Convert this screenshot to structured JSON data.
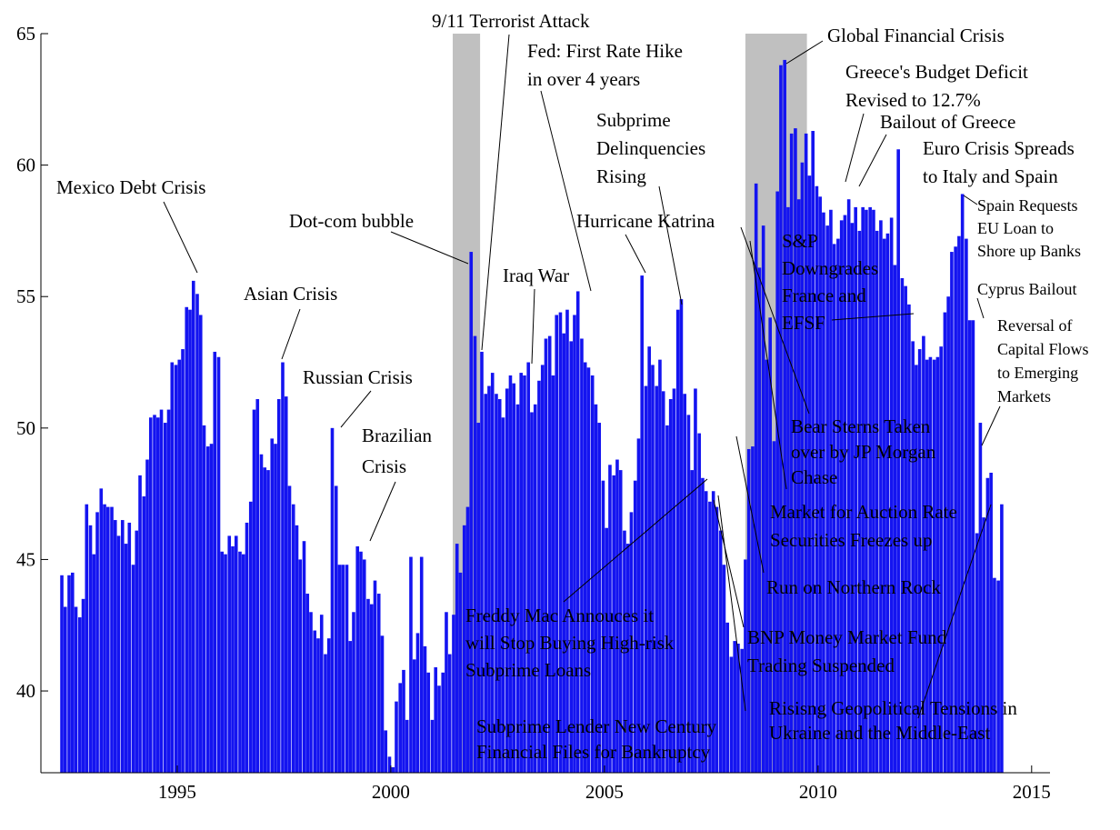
{
  "chart_data": {
    "type": "bar",
    "color": "#1414f0",
    "shade_color": "#c0c0c0",
    "xlim": [
      1991.81,
      2015.43
    ],
    "ylim": [
      36.89,
      65
    ],
    "xticks": [
      1995,
      2000,
      2005,
      2010,
      2015
    ],
    "yticks": [
      40,
      45,
      50,
      55,
      60,
      65
    ],
    "shaded_periods": [
      [
        2001.45,
        2002.09
      ],
      [
        2008.3,
        2009.74
      ]
    ],
    "x": [
      1992.3,
      1992.38,
      1992.47,
      1992.55,
      1992.63,
      1992.72,
      1992.8,
      1992.88,
      1992.97,
      1993.05,
      1993.13,
      1993.22,
      1993.3,
      1993.38,
      1993.47,
      1993.55,
      1993.63,
      1993.72,
      1993.8,
      1993.88,
      1993.97,
      1994.05,
      1994.13,
      1994.22,
      1994.3,
      1994.38,
      1994.47,
      1994.55,
      1994.63,
      1994.72,
      1994.8,
      1994.88,
      1994.97,
      1995.05,
      1995.13,
      1995.22,
      1995.3,
      1995.38,
      1995.47,
      1995.55,
      1995.63,
      1995.72,
      1995.8,
      1995.88,
      1995.97,
      1996.05,
      1996.13,
      1996.22,
      1996.3,
      1996.38,
      1996.47,
      1996.55,
      1996.63,
      1996.72,
      1996.8,
      1996.88,
      1996.97,
      1997.05,
      1997.13,
      1997.22,
      1997.3,
      1997.38,
      1997.47,
      1997.55,
      1997.63,
      1997.72,
      1997.8,
      1997.88,
      1997.97,
      1998.05,
      1998.13,
      1998.22,
      1998.3,
      1998.38,
      1998.47,
      1998.55,
      1998.63,
      1998.72,
      1998.8,
      1998.88,
      1998.97,
      1999.05,
      1999.13,
      1999.22,
      1999.3,
      1999.38,
      1999.47,
      1999.55,
      1999.63,
      1999.72,
      1999.8,
      1999.88,
      1999.97,
      2000.05,
      2000.13,
      2000.22,
      2000.3,
      2000.38,
      2000.47,
      2000.55,
      2000.63,
      2000.72,
      2000.8,
      2000.88,
      2000.97,
      2001.05,
      2001.13,
      2001.22,
      2001.3,
      2001.38,
      2001.47,
      2001.55,
      2001.63,
      2001.72,
      2001.8,
      2001.88,
      2001.97,
      2002.05,
      2002.13,
      2002.22,
      2002.3,
      2002.38,
      2002.47,
      2002.55,
      2002.63,
      2002.72,
      2002.8,
      2002.88,
      2002.97,
      2003.05,
      2003.13,
      2003.22,
      2003.3,
      2003.38,
      2003.47,
      2003.55,
      2003.63,
      2003.72,
      2003.8,
      2003.88,
      2003.97,
      2004.05,
      2004.13,
      2004.22,
      2004.3,
      2004.38,
      2004.47,
      2004.55,
      2004.63,
      2004.72,
      2004.8,
      2004.88,
      2004.97,
      2005.05,
      2005.13,
      2005.22,
      2005.3,
      2005.38,
      2005.47,
      2005.55,
      2005.63,
      2005.72,
      2005.8,
      2005.88,
      2005.97,
      2006.05,
      2006.13,
      2006.22,
      2006.3,
      2006.38,
      2006.47,
      2006.55,
      2006.63,
      2006.72,
      2006.8,
      2006.88,
      2006.97,
      2007.05,
      2007.13,
      2007.22,
      2007.3,
      2007.38,
      2007.47,
      2007.55,
      2007.63,
      2007.72,
      2007.8,
      2007.88,
      2007.97,
      2008.05,
      2008.13,
      2008.22,
      2008.3,
      2008.38,
      2008.47,
      2008.55,
      2008.63,
      2008.72,
      2008.8,
      2008.88,
      2008.97,
      2009.05,
      2009.13,
      2009.22,
      2009.3,
      2009.38,
      2009.47,
      2009.55,
      2009.63,
      2009.72,
      2009.8,
      2009.88,
      2009.97,
      2010.05,
      2010.13,
      2010.22,
      2010.3,
      2010.38,
      2010.47,
      2010.55,
      2010.63,
      2010.72,
      2010.8,
      2010.88,
      2010.97,
      2011.05,
      2011.13,
      2011.22,
      2011.3,
      2011.38,
      2011.47,
      2011.55,
      2011.63,
      2011.72,
      2011.8,
      2011.88,
      2011.97,
      2012.05,
      2012.13,
      2012.22,
      2012.3,
      2012.38,
      2012.47,
      2012.55,
      2012.63,
      2012.72,
      2012.8,
      2012.88,
      2012.97,
      2013.05,
      2013.13,
      2013.22,
      2013.3,
      2013.38,
      2013.47,
      2013.55,
      2013.63,
      2013.72,
      2013.8,
      2013.88,
      2013.97,
      2014.05,
      2014.13,
      2014.22,
      2014.3
    ],
    "values": [
      44.4,
      43.2,
      44.4,
      44.5,
      43.2,
      42.8,
      43.5,
      47.1,
      46.3,
      45.2,
      46.8,
      47.7,
      47.1,
      47.0,
      47.0,
      46.5,
      45.9,
      46.5,
      45.6,
      46.4,
      44.8,
      46.1,
      48.2,
      47.4,
      48.8,
      50.4,
      50.5,
      50.4,
      50.7,
      50.2,
      50.7,
      52.5,
      52.4,
      52.6,
      53.0,
      54.6,
      54.5,
      55.6,
      55.1,
      54.3,
      50.1,
      49.3,
      49.4,
      52.9,
      52.7,
      45.3,
      45.2,
      45.9,
      45.5,
      45.9,
      45.3,
      45.2,
      46.4,
      47.2,
      50.7,
      51.1,
      49.0,
      48.5,
      48.4,
      49.6,
      49.4,
      51.1,
      52.5,
      51.2,
      47.8,
      47.1,
      46.3,
      45.0,
      45.7,
      43.7,
      43.0,
      42.3,
      42.0,
      42.9,
      41.4,
      42.0,
      50.0,
      47.8,
      44.8,
      44.8,
      44.8,
      41.9,
      43.0,
      45.5,
      45.3,
      45.0,
      43.5,
      43.3,
      44.2,
      43.7,
      42.1,
      38.5,
      37.5,
      37.1,
      39.6,
      40.3,
      40.8,
      38.9,
      45.1,
      41.2,
      42.2,
      45.1,
      41.7,
      40.7,
      38.9,
      40.9,
      40.2,
      40.7,
      43.0,
      41.4,
      42.9,
      45.6,
      44.5,
      46.3,
      47.0,
      56.7,
      53.5,
      50.2,
      52.9,
      51.3,
      51.6,
      52.1,
      51.3,
      51.1,
      50.4,
      51.5,
      52.0,
      51.7,
      50.9,
      52.1,
      52.0,
      52.5,
      50.6,
      50.9,
      51.8,
      52.4,
      53.4,
      53.5,
      52.0,
      54.3,
      54.4,
      53.6,
      54.5,
      53.3,
      54.3,
      55.2,
      53.4,
      52.5,
      52.3,
      52.0,
      50.9,
      50.2,
      48.0,
      46.2,
      48.6,
      48.2,
      48.8,
      48.4,
      46.1,
      45.6,
      46.8,
      48.0,
      49.6,
      55.8,
      51.6,
      53.1,
      52.4,
      51.6,
      52.6,
      51.4,
      50.1,
      51.1,
      51.5,
      54.5,
      54.9,
      51.3,
      50.5,
      48.4,
      51.5,
      49.8,
      48.1,
      47.6,
      47.2,
      47.6,
      47.0,
      46.1,
      44.8,
      42.6,
      41.3,
      41.9,
      41.8,
      41.6,
      45.0,
      49.2,
      49.3,
      59.3,
      56.1,
      57.7,
      52.6,
      54.2,
      49.5,
      59.0,
      63.8,
      64.0,
      58.4,
      61.2,
      61.4,
      58.7,
      60.1,
      61.2,
      59.6,
      61.3,
      59.2,
      58.8,
      58.2,
      57.7,
      58.3,
      57.0,
      57.2,
      57.9,
      58.1,
      58.7,
      57.8,
      58.4,
      57.5,
      58.4,
      58.3,
      58.4,
      58.3,
      57.5,
      57.9,
      57.2,
      57.4,
      58.0,
      56.2,
      60.6,
      55.7,
      55.4,
      54.7,
      53.3,
      52.4,
      53.0,
      53.5,
      52.6,
      52.7,
      52.6,
      52.7,
      53.1,
      54.4,
      55.0,
      56.7,
      56.9,
      57.3,
      58.9,
      57.2,
      54.1,
      54.1,
      46.0,
      50.2,
      46.6,
      48.1,
      48.3,
      44.3,
      44.2,
      47.1
    ],
    "annotations": [
      {
        "text": [
          "Mexico Debt Crisis"
        ]
      },
      {
        "text": [
          "Asian Crisis"
        ]
      },
      {
        "text": [
          "Russian Crisis"
        ]
      },
      {
        "text": [
          "Brazilian",
          "Crisis"
        ]
      },
      {
        "text": [
          "Dot-com bubble"
        ]
      },
      {
        "text": [
          "9/11 Terrorist Attack"
        ]
      },
      {
        "text": [
          "Fed: First Rate Hike",
          "in over 4 years"
        ]
      },
      {
        "text": [
          "Iraq War"
        ]
      },
      {
        "text": [
          "Hurricane Katrina"
        ]
      },
      {
        "text": [
          "Subprime",
          "Delinquencies",
          "Rising"
        ]
      },
      {
        "text": [
          "Global Financial Crisis"
        ]
      },
      {
        "text": [
          "Greece's Budget Deficit",
          "Revised to 12.7%"
        ]
      },
      {
        "text": [
          "Bailout of Greece"
        ]
      },
      {
        "text": [
          "Euro Crisis Spreads",
          "to Italy and Spain"
        ]
      },
      {
        "text": [
          "Spain Requests",
          "EU Loan to",
          "Shore up Banks"
        ]
      },
      {
        "text": [
          "Cyprus Bailout"
        ]
      },
      {
        "text": [
          "Reversal of",
          "Capital Flows",
          "to Emerging",
          "Markets"
        ]
      },
      {
        "text": [
          "S&P",
          "Downgrades",
          "France and",
          "EFSF"
        ]
      },
      {
        "text": [
          "Bear Sterns Taken",
          "over by JP Morgan",
          "Chase"
        ]
      },
      {
        "text": [
          "Market for Auction Rate",
          "Securities Freezes up"
        ]
      },
      {
        "text": [
          "Run on Northern Rock"
        ]
      },
      {
        "text": [
          "BNP Money Market Fund",
          "Trading Suspended"
        ]
      },
      {
        "text": [
          "Freddy Mac Annouces it",
          "will Stop Buying High-risk",
          "Subprime Loans"
        ]
      },
      {
        "text": [
          "Subprime Lender New Century",
          "Financial Files for Bankruptcy"
        ]
      },
      {
        "text": [
          "Risisng Geopolitical Tensions in",
          "Ukraine and the Middle-East"
        ]
      }
    ]
  }
}
